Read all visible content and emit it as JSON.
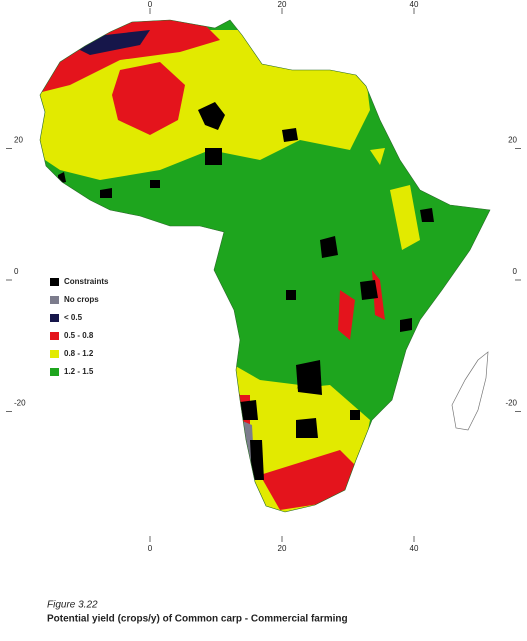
{
  "map": {
    "lon_ticks": [
      0,
      20,
      40
    ],
    "lat_ticks": [
      20,
      0,
      -20
    ],
    "legend": [
      {
        "label": "Constraints",
        "color": "#000000"
      },
      {
        "label": "No crops",
        "color": "#7c7c8c"
      },
      {
        "label": "< 0.5",
        "color": "#16164a"
      },
      {
        "label": "0.5 - 0.8",
        "color": "#e4141c"
      },
      {
        "label": "0.8 - 1.2",
        "color": "#e2ea00"
      },
      {
        "label": "1.2 - 1.5",
        "color": "#1ea51e"
      }
    ],
    "caption": {
      "figure": "Figure 3.22",
      "title": "Potential yield (crops/y) of Common carp - Commercial farming"
    }
  }
}
